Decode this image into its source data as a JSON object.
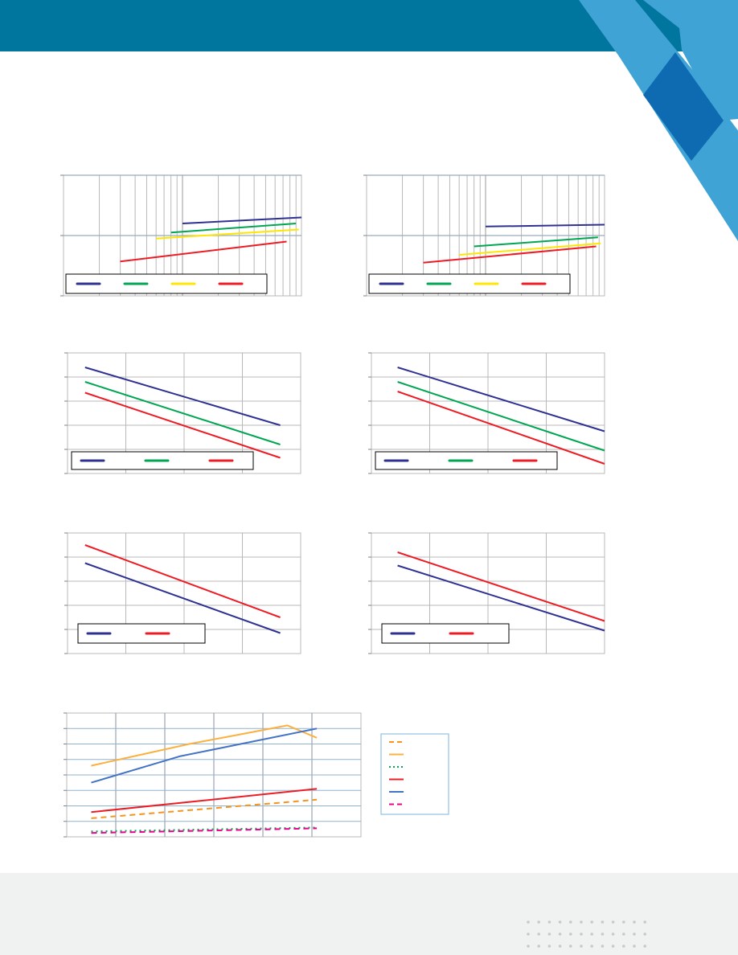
{
  "theme": {
    "header_color": "#00769f",
    "corner_light": "#3fa3d6",
    "corner_dark": "#0f6bb1",
    "footer_color": "#f0f1f1",
    "dot_color": "#c7c9ca",
    "grid_color": "#b8b8b8",
    "legend_border": "#000000",
    "legend_border_alt": "#7fb3d9"
  },
  "chart_data": [
    {
      "type": "line",
      "xscale": "log",
      "xlim": [
        1,
        100
      ],
      "ylim": [
        0,
        2
      ],
      "legend": {
        "placement": "bottom-left",
        "entries": 4
      },
      "series": [
        {
          "color": "#2e3192",
          "dash": "solid",
          "x": [
            10,
            100
          ],
          "y": [
            1.2,
            1.3
          ]
        },
        {
          "color": "#00a651",
          "dash": "solid",
          "x": [
            8,
            90
          ],
          "y": [
            1.05,
            1.2
          ]
        },
        {
          "color": "#ffe600",
          "dash": "solid",
          "x": [
            6,
            95
          ],
          "y": [
            0.95,
            1.1
          ]
        },
        {
          "color": "#ed1c24",
          "dash": "solid",
          "x": [
            3,
            75
          ],
          "y": [
            0.57,
            0.9
          ]
        }
      ]
    },
    {
      "type": "line",
      "xscale": "log",
      "xlim": [
        1,
        100
      ],
      "ylim": [
        0,
        2
      ],
      "legend": {
        "placement": "bottom-left",
        "entries": 4
      },
      "series": [
        {
          "color": "#2e3192",
          "dash": "solid",
          "x": [
            10,
            100
          ],
          "y": [
            1.15,
            1.18
          ]
        },
        {
          "color": "#00a651",
          "dash": "solid",
          "x": [
            8,
            88
          ],
          "y": [
            0.82,
            0.97
          ]
        },
        {
          "color": "#ffe600",
          "dash": "solid",
          "x": [
            6,
            93
          ],
          "y": [
            0.68,
            0.87
          ]
        },
        {
          "color": "#ed1c24",
          "dash": "solid",
          "x": [
            3,
            85
          ],
          "y": [
            0.55,
            0.82
          ]
        }
      ]
    },
    {
      "type": "line",
      "xlim": [
        0,
        4
      ],
      "ylim": [
        0,
        5
      ],
      "legend": {
        "placement": "bottom-left",
        "entries": 3
      },
      "series": [
        {
          "color": "#2e3192",
          "dash": "solid",
          "x": [
            0.3,
            3.65
          ],
          "y": [
            4.4,
            2.0
          ]
        },
        {
          "color": "#00a651",
          "dash": "solid",
          "x": [
            0.3,
            3.65
          ],
          "y": [
            3.8,
            1.2
          ]
        },
        {
          "color": "#ed1c24",
          "dash": "solid",
          "x": [
            0.3,
            3.65
          ],
          "y": [
            3.35,
            0.65
          ]
        }
      ]
    },
    {
      "type": "line",
      "xlim": [
        0,
        4
      ],
      "ylim": [
        0,
        5
      ],
      "legend": {
        "placement": "bottom-left",
        "entries": 3
      },
      "series": [
        {
          "color": "#2e3192",
          "dash": "solid",
          "x": [
            0.45,
            4.0
          ],
          "y": [
            4.4,
            1.75
          ]
        },
        {
          "color": "#00a651",
          "dash": "solid",
          "x": [
            0.45,
            4.0
          ],
          "y": [
            3.8,
            0.95
          ]
        },
        {
          "color": "#ed1c24",
          "dash": "solid",
          "x": [
            0.45,
            4.0
          ],
          "y": [
            3.4,
            0.4
          ]
        }
      ]
    },
    {
      "type": "line",
      "xlim": [
        0,
        4
      ],
      "ylim": [
        0,
        5
      ],
      "legend": {
        "placement": "bottom-left",
        "entries": 2
      },
      "series": [
        {
          "color": "#2e3192",
          "dash": "solid",
          "x": [
            0.3,
            3.65
          ],
          "y": [
            3.75,
            0.85
          ]
        },
        {
          "color": "#ed1c24",
          "dash": "solid",
          "x": [
            0.3,
            3.65
          ],
          "y": [
            4.5,
            1.5
          ]
        }
      ]
    },
    {
      "type": "line",
      "xlim": [
        0,
        4
      ],
      "ylim": [
        0,
        5
      ],
      "legend": {
        "placement": "bottom-left",
        "entries": 2
      },
      "series": [
        {
          "color": "#2e3192",
          "dash": "solid",
          "x": [
            0.45,
            4.0
          ],
          "y": [
            3.65,
            0.95
          ]
        },
        {
          "color": "#ed1c24",
          "dash": "solid",
          "x": [
            0.45,
            4.0
          ],
          "y": [
            4.2,
            1.35
          ]
        }
      ]
    },
    {
      "type": "line",
      "xlim": [
        0,
        6
      ],
      "ylim": [
        0,
        8
      ],
      "legend": {
        "placement": "right",
        "entries": 6
      },
      "series": [
        {
          "color": "#f7941d",
          "dash": "dashed",
          "x": [
            0.5,
            5.1
          ],
          "y": [
            1.2,
            2.4
          ]
        },
        {
          "color": "#fbb040",
          "dash": "solid",
          "x": [
            0.5,
            1.5,
            2.5,
            3.5,
            4.5,
            5.1
          ],
          "y": [
            4.6,
            5.3,
            6.0,
            6.6,
            7.2,
            6.4
          ]
        },
        {
          "color": "#00a651",
          "dash": "dotted",
          "x": [
            0.5,
            5.1
          ],
          "y": [
            0.35,
            0.6
          ]
        },
        {
          "color": "#ed1c24",
          "dash": "solid",
          "x": [
            0.5,
            5.1
          ],
          "y": [
            1.6,
            3.1
          ]
        },
        {
          "color": "#4472c4",
          "dash": "solid",
          "x": [
            0.5,
            2.3,
            5.1
          ],
          "y": [
            3.5,
            5.2,
            7.0
          ]
        },
        {
          "color": "#ec008c",
          "dash": "dashed",
          "x": [
            0.5,
            5.1
          ],
          "y": [
            0.25,
            0.55
          ]
        }
      ]
    }
  ]
}
